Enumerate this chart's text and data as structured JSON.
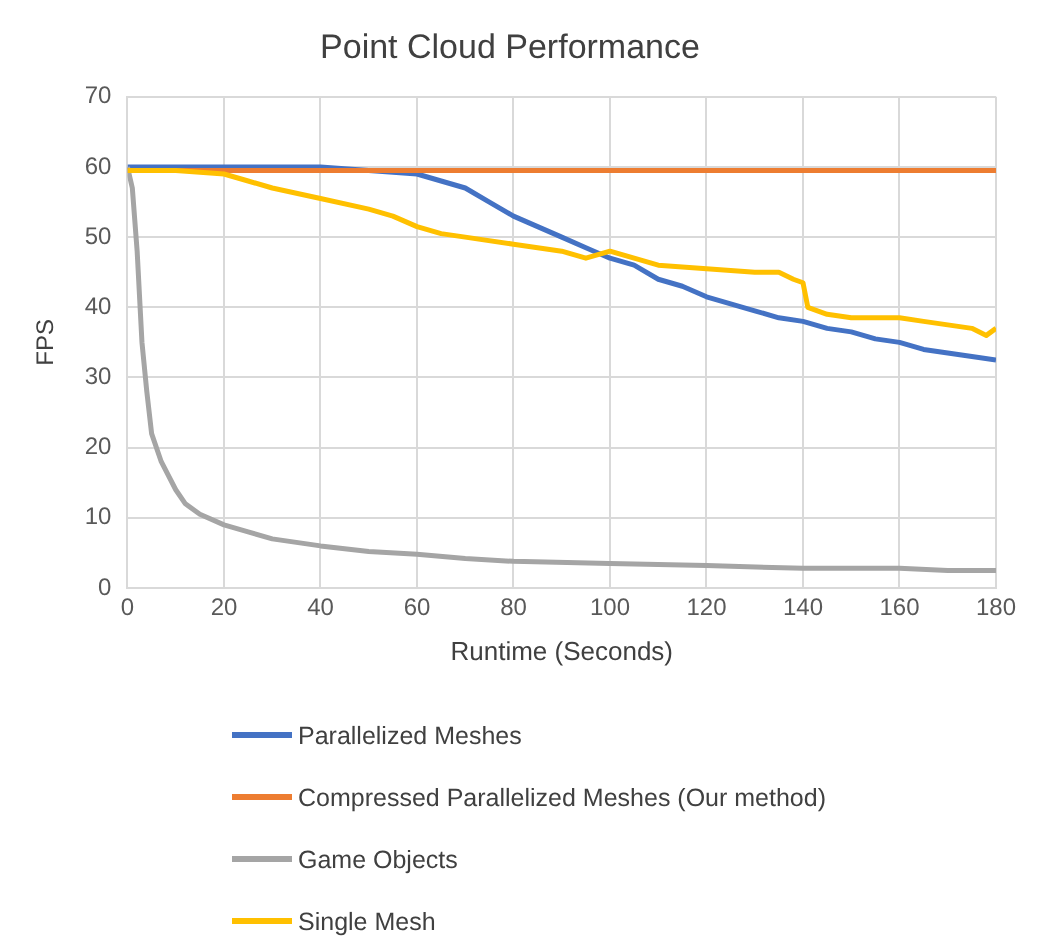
{
  "chart_data": {
    "type": "line",
    "title": "Point Cloud Performance",
    "xlabel": "Runtime (Seconds)",
    "ylabel": "FPS",
    "xlim": [
      0,
      180
    ],
    "xticks": [
      0,
      20,
      40,
      60,
      80,
      100,
      120,
      140,
      160,
      180
    ],
    "ylim": [
      0,
      70
    ],
    "yticks": [
      0,
      10,
      20,
      30,
      40,
      50,
      60,
      70
    ],
    "grid": true,
    "legend": "bottom",
    "marker": "none",
    "line_style": "solid",
    "series": [
      {
        "name": "Parallelized Meshes",
        "color": "#4472c4",
        "x": [
          0,
          20,
          40,
          60,
          65,
          70,
          75,
          80,
          85,
          90,
          95,
          100,
          105,
          110,
          115,
          120,
          125,
          130,
          135,
          140,
          145,
          150,
          155,
          160,
          165,
          170,
          175,
          180
        ],
        "values": [
          60,
          60,
          60,
          59,
          58,
          57,
          55,
          53,
          51.5,
          50,
          48.5,
          47,
          46,
          44,
          43,
          41.5,
          40.5,
          39.5,
          38.5,
          38,
          37,
          36.5,
          35.5,
          35,
          34,
          33.5,
          33,
          32.5
        ]
      },
      {
        "name": "Compressed Parallelized Meshes (Our method)",
        "color": "#ed7d31",
        "x": [
          0,
          20,
          40,
          60,
          80,
          100,
          120,
          140,
          160,
          180
        ],
        "values": [
          59.5,
          59.5,
          59.5,
          59.5,
          59.5,
          59.5,
          59.5,
          59.5,
          59.5,
          59.5
        ]
      },
      {
        "name": "Game Objects",
        "color": "#a5a5a5",
        "x": [
          0,
          1,
          2,
          3,
          4,
          5,
          7,
          10,
          12,
          15,
          20,
          25,
          30,
          40,
          50,
          60,
          70,
          80,
          100,
          120,
          140,
          160,
          170,
          180
        ],
        "values": [
          60,
          57,
          48,
          35,
          28,
          22,
          18,
          14,
          12,
          10.5,
          9,
          8,
          7,
          6,
          5.2,
          4.8,
          4.2,
          3.8,
          3.5,
          3.2,
          2.8,
          2.8,
          2.5,
          2.5
        ]
      },
      {
        "name": "Single Mesh",
        "color": "#ffc000",
        "x": [
          0,
          10,
          20,
          25,
          30,
          40,
          50,
          55,
          60,
          65,
          70,
          80,
          90,
          95,
          100,
          105,
          110,
          120,
          130,
          135,
          138,
          140,
          141,
          145,
          150,
          160,
          165,
          170,
          175,
          178,
          180
        ],
        "values": [
          59.5,
          59.5,
          59,
          58,
          57,
          55.5,
          54,
          53,
          51.5,
          50.5,
          50,
          49,
          48,
          47,
          48,
          47,
          46,
          45.5,
          45,
          45,
          44,
          43.5,
          40,
          39,
          38.5,
          38.5,
          38,
          37.5,
          37,
          36,
          37
        ]
      }
    ]
  }
}
